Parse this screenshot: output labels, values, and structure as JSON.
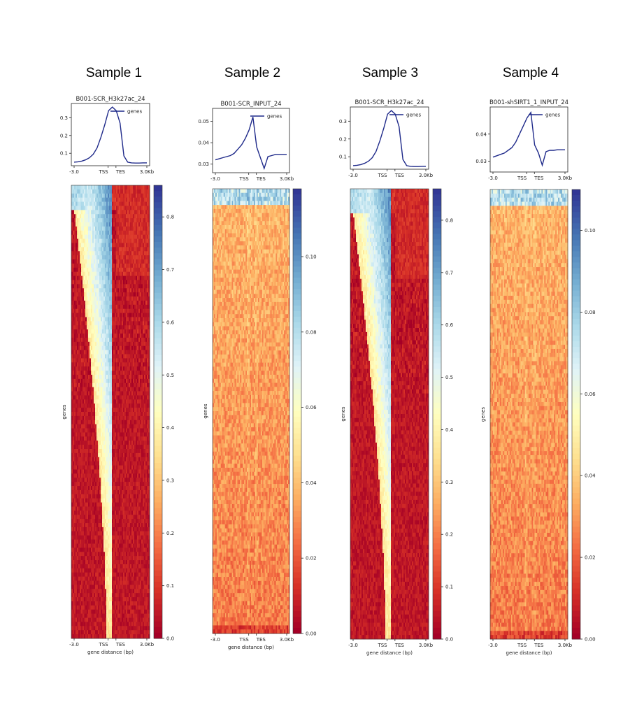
{
  "chart_data": [
    {
      "type": "heatmap",
      "sample_label": "Sample 1",
      "title": "B001-SCR_H3k27ac_24",
      "profile": {
        "type": "line",
        "series": [
          {
            "name": "genes",
            "color": "#1f2a8a"
          }
        ],
        "legend_position": "upper-right",
        "ylim": [
          0.03,
          0.38
        ],
        "yticks": [
          "0.1",
          "0.2",
          "0.3"
        ],
        "profile_values": [
          0.05,
          0.052,
          0.056,
          0.063,
          0.075,
          0.095,
          0.13,
          0.19,
          0.26,
          0.34,
          0.36,
          0.34,
          0.27,
          0.085,
          0.05,
          0.046,
          0.045,
          0.045,
          0.046,
          0.046
        ]
      },
      "xticks": [
        "-3.0",
        "TSS",
        "TES",
        "3.0Kb"
      ],
      "xlabel": "gene distance (bp)",
      "ylabel": "genes",
      "colorbar": {
        "min": 0.0,
        "max": 0.86,
        "ticks": [
          "0.0",
          "0.1",
          "0.2",
          "0.3",
          "0.4",
          "0.5",
          "0.6",
          "0.7",
          "0.8"
        ]
      },
      "pattern": "strong"
    },
    {
      "type": "heatmap",
      "sample_label": "Sample 2",
      "title": "B001-SCR_INPUT_24",
      "profile": {
        "type": "line",
        "series": [
          {
            "name": "genes",
            "color": "#1f2a8a"
          }
        ],
        "legend_position": "upper-right",
        "ylim": [
          0.026,
          0.056
        ],
        "yticks": [
          "0.03",
          "0.04",
          "0.05"
        ],
        "profile_values": [
          0.032,
          0.0325,
          0.033,
          0.0335,
          0.034,
          0.035,
          0.037,
          0.039,
          0.042,
          0.046,
          0.052,
          0.038,
          0.033,
          0.028,
          0.0335,
          0.034,
          0.0345,
          0.0345,
          0.0345,
          0.0345
        ]
      },
      "xticks": [
        "-3.0",
        "TSS",
        "TES",
        "3.0Kb"
      ],
      "xlabel": "gene distance (bp)",
      "ylabel": "genes",
      "colorbar": {
        "min": 0.0,
        "max": 0.118,
        "ticks": [
          "0.00",
          "0.02",
          "0.04",
          "0.06",
          "0.08",
          "0.10"
        ]
      },
      "pattern": "weak"
    },
    {
      "type": "heatmap",
      "sample_label": "Sample 3",
      "title": "B001-SCR_H3k27ac_24",
      "profile": {
        "type": "line",
        "series": [
          {
            "name": "genes",
            "color": "#1f2a8a"
          }
        ],
        "legend_position": "upper-right",
        "ylim": [
          0.03,
          0.38
        ],
        "yticks": [
          "0.1",
          "0.2",
          "0.3"
        ],
        "profile_values": [
          0.05,
          0.052,
          0.056,
          0.063,
          0.075,
          0.095,
          0.13,
          0.19,
          0.26,
          0.34,
          0.36,
          0.34,
          0.27,
          0.085,
          0.05,
          0.046,
          0.045,
          0.045,
          0.046,
          0.046
        ]
      },
      "xticks": [
        "-3.0",
        "TSS",
        "TES",
        "3.0Kb"
      ],
      "xlabel": "gene distance (bp)",
      "ylabel": "genes",
      "colorbar": {
        "min": 0.0,
        "max": 0.86,
        "ticks": [
          "0.0",
          "0.1",
          "0.2",
          "0.3",
          "0.4",
          "0.5",
          "0.6",
          "0.7",
          "0.8"
        ]
      },
      "pattern": "strong"
    },
    {
      "type": "heatmap",
      "sample_label": "Sample 4",
      "title": "B001-shSIRT1_1_INPUT_24",
      "profile": {
        "type": "line",
        "series": [
          {
            "name": "genes",
            "color": "#1f2a8a"
          }
        ],
        "legend_position": "upper-right",
        "ylim": [
          0.026,
          0.05
        ],
        "yticks": [
          "0.03",
          "0.04"
        ],
        "profile_values": [
          0.0315,
          0.032,
          0.0325,
          0.033,
          0.034,
          0.035,
          0.037,
          0.04,
          0.043,
          0.046,
          0.048,
          0.036,
          0.033,
          0.0285,
          0.0335,
          0.034,
          0.034,
          0.0342,
          0.0342,
          0.0342
        ]
      },
      "xticks": [
        "-3.0",
        "TSS",
        "TES",
        "3.0Kb"
      ],
      "xlabel": "gene distance (bp)",
      "ylabel": "genes",
      "colorbar": {
        "min": 0.0,
        "max": 0.11,
        "ticks": [
          "0.00",
          "0.02",
          "0.04",
          "0.06",
          "0.08",
          "0.10"
        ]
      },
      "pattern": "weak"
    }
  ]
}
